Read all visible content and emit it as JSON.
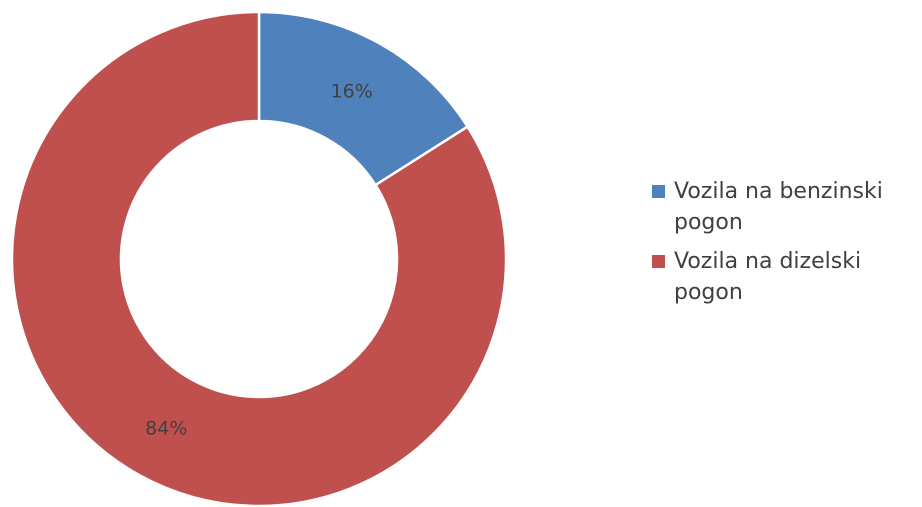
{
  "chart_data": {
    "type": "pie",
    "variant": "donut",
    "legend_position": "right",
    "series": [
      {
        "name": "Vozila na benzinski pogon",
        "value": 16,
        "label": "16%",
        "color": "#4F81BD"
      },
      {
        "name": "Vozila na dizelski pogon",
        "value": 84,
        "label": "84%",
        "color": "#C0504D"
      }
    ]
  }
}
